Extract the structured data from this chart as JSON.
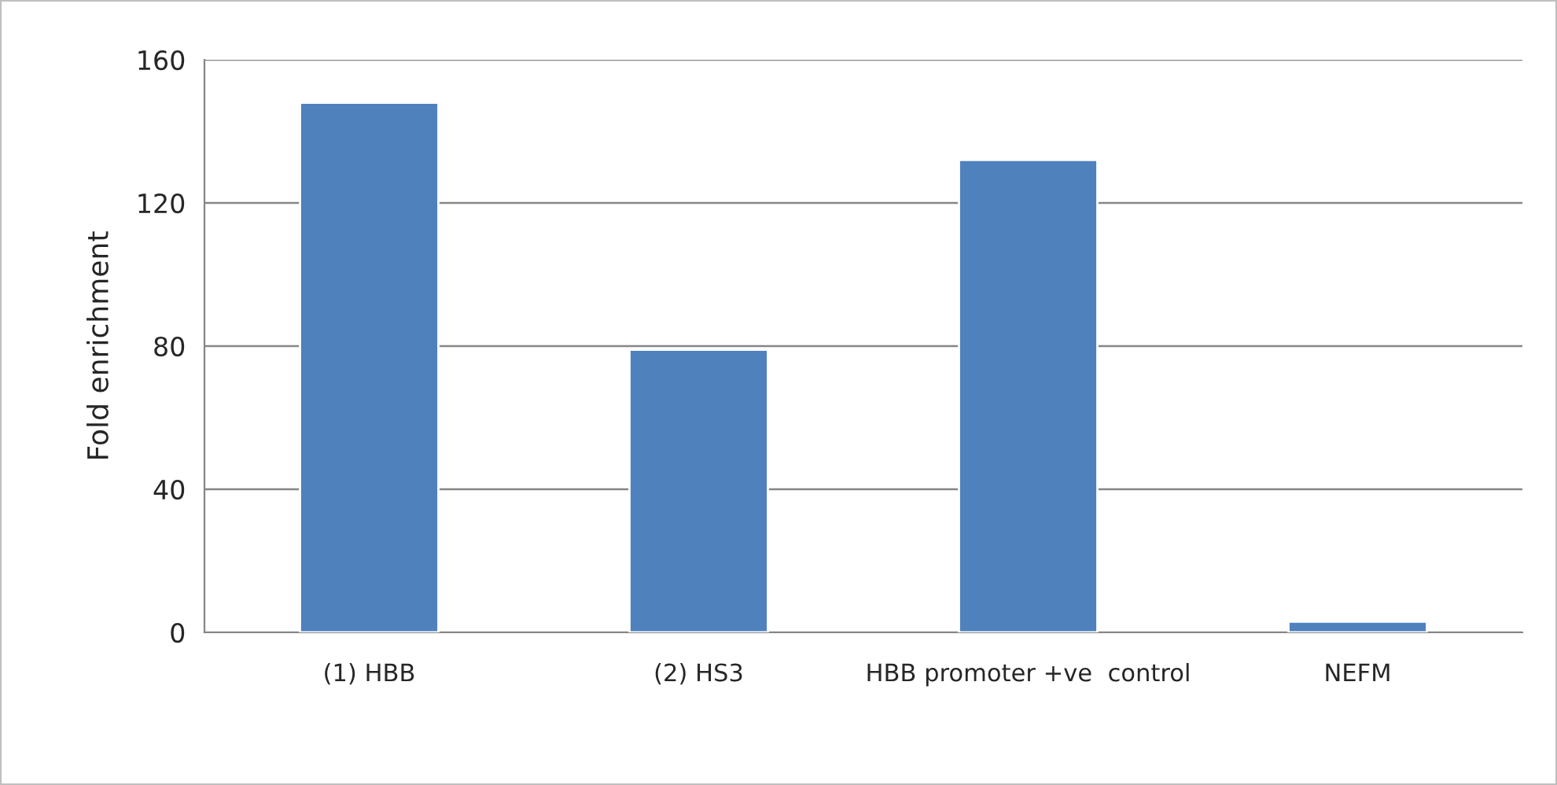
{
  "chart_data": {
    "type": "bar",
    "ylabel": "Fold enrichment",
    "categories": [
      "(1) HBB",
      "(2) HS3",
      "HBB promoter +ve  control",
      "NEFM"
    ],
    "values": [
      148,
      79,
      132,
      3
    ],
    "color": "#4f81bd",
    "ylim": [
      0,
      160
    ],
    "yticks": [
      0,
      40,
      80,
      120,
      160
    ],
    "grid": "y"
  }
}
